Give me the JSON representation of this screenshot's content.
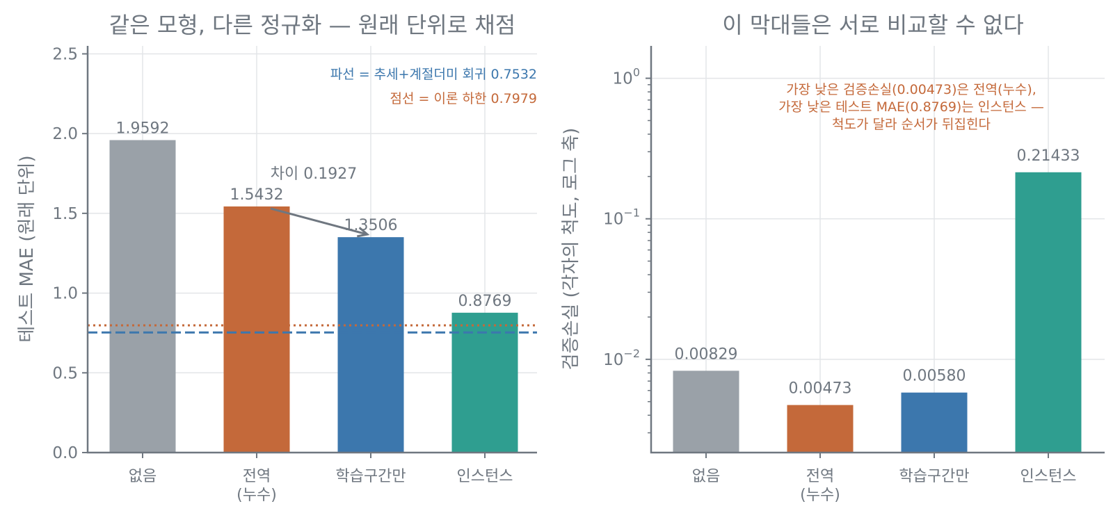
{
  "chart_data": [
    {
      "type": "bar",
      "title": "같은 모형, 다른 정규화 — 원래 단위로 채점",
      "ylabel": "테스트 MAE (원래 단위)",
      "categories": [
        [
          "없음"
        ],
        [
          "전역",
          "(누수)"
        ],
        [
          "학습구간만"
        ],
        [
          "인스턴스"
        ]
      ],
      "values": [
        1.9592,
        1.5432,
        1.3506,
        0.8769
      ],
      "value_labels": [
        "1.9592",
        "1.5432",
        "1.3506",
        "0.8769"
      ],
      "colors": [
        "#9aa1a8",
        "#c4693a",
        "#3c77ad",
        "#2f9e90"
      ],
      "ylim": [
        0,
        2.55
      ],
      "yticks": [
        0,
        0.5,
        1.0,
        1.5,
        2.0,
        2.5
      ],
      "ytick_labels": [
        "0.0",
        "0.5",
        "1.0",
        "1.5",
        "2.0",
        "2.5"
      ],
      "grid": true,
      "reference_lines": [
        {
          "value": 0.7532,
          "style": "dashed",
          "color": "#3c77ad",
          "label": "파선 = 추세+계절더미 회귀 0.7532"
        },
        {
          "value": 0.7979,
          "style": "dotted",
          "color": "#c4693a",
          "label": "점선 = 이론 하한 0.7979"
        }
      ],
      "annotation": {
        "text": "차이 0.1927",
        "from_category": 1,
        "to_category": 2
      }
    },
    {
      "type": "bar",
      "title": "이 막대들은 서로 비교할 수 없다",
      "ylabel": "검증손실 (각자의 척도, 로그 축)",
      "yscale": "log",
      "categories": [
        [
          "없음"
        ],
        [
          "전역",
          "(누수)"
        ],
        [
          "학습구간만"
        ],
        [
          "인스턴스"
        ]
      ],
      "values": [
        0.00829,
        0.00473,
        0.0058,
        0.21433
      ],
      "value_labels": [
        "0.00829",
        "0.00473",
        "0.00580",
        "0.21433"
      ],
      "colors": [
        "#9aa1a8",
        "#c4693a",
        "#3c77ad",
        "#2f9e90"
      ],
      "ylim": [
        0.00217,
        1.7
      ],
      "yticks": [
        0.01,
        0.1,
        1
      ],
      "ytick_labels": [
        {
          "base": "10",
          "exp": "−2"
        },
        {
          "base": "10",
          "exp": "−1"
        },
        {
          "base": "10",
          "exp": "0"
        }
      ],
      "grid": true,
      "annotation_lines": [
        "가장 낮은 검증손실(0.00473)은 전역(누수),",
        "가장 낮은 테스트 MAE(0.8769)는 인스턴스 —",
        "척도가 달라 순서가 뒤집힌다"
      ],
      "annotation_color": "#c4693a"
    }
  ]
}
